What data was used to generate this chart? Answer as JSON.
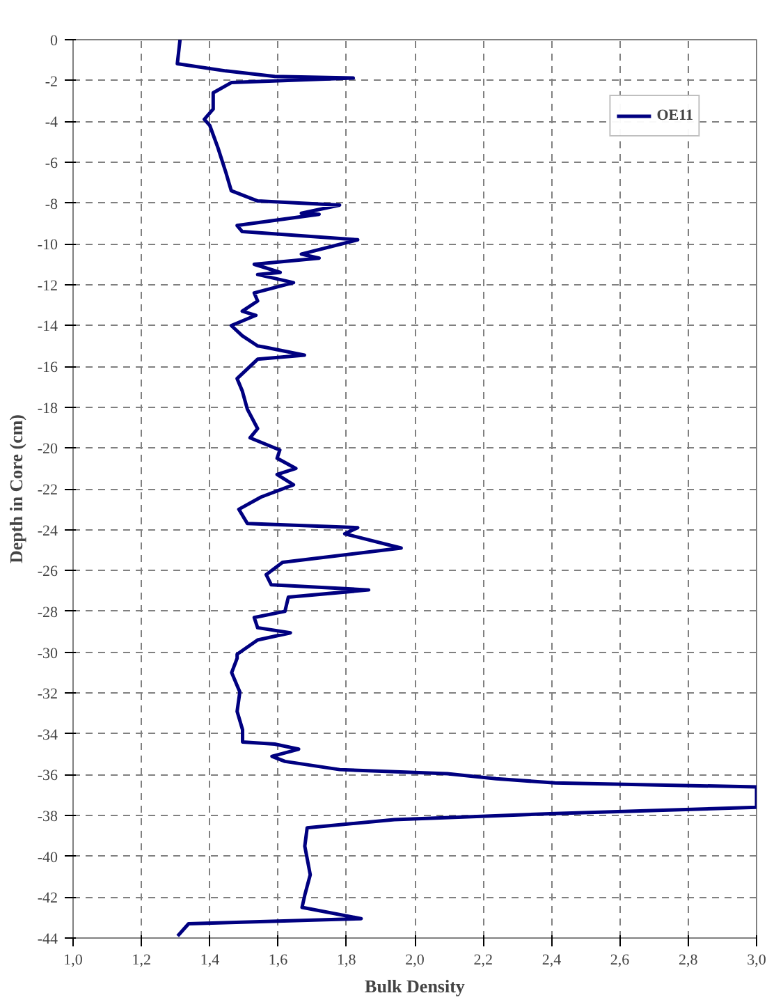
{
  "chart_data": {
    "type": "line",
    "xlabel": "Bulk Density",
    "ylabel": "Depth in Core (cm)",
    "series": [
      {
        "name": "OE11",
        "color": "#000080",
        "x": [
          1.313,
          1.305,
          1.447,
          1.59,
          1.82,
          1.463,
          1.41,
          1.41,
          1.384,
          1.4,
          1.424,
          1.447,
          1.463,
          1.54,
          1.78,
          1.668,
          1.72,
          1.48,
          1.495,
          1.833,
          1.668,
          1.72,
          1.53,
          1.606,
          1.54,
          1.645,
          1.53,
          1.54,
          1.495,
          1.535,
          1.463,
          1.495,
          1.54,
          1.558,
          1.677,
          1.54,
          1.48,
          1.495,
          1.51,
          1.54,
          1.518,
          1.605,
          1.597,
          1.652,
          1.597,
          1.645,
          1.55,
          1.485,
          1.51,
          1.833,
          1.795,
          1.96,
          1.613,
          1.565,
          1.58,
          1.865,
          1.63,
          1.62,
          1.53,
          1.54,
          1.636,
          1.54,
          1.48,
          1.48,
          1.464,
          1.488,
          1.48,
          1.496,
          1.496,
          1.59,
          1.66,
          1.582,
          1.62,
          1.78,
          2.095,
          2.238,
          2.41,
          3.0,
          3.0,
          2.41,
          1.94,
          1.685,
          1.678,
          1.694,
          1.678,
          1.67,
          1.843,
          1.338,
          1.306
        ],
        "values": [
          0,
          -1.18,
          -1.53,
          -1.8,
          -1.88,
          -2.1,
          -2.6,
          -3.4,
          -3.9,
          -4.2,
          -5.3,
          -6.5,
          -7.4,
          -7.9,
          -8.1,
          -8.5,
          -8.55,
          -9.1,
          -9.4,
          -9.8,
          -10.5,
          -10.7,
          -11.0,
          -11.4,
          -11.5,
          -11.9,
          -12.4,
          -12.8,
          -13.3,
          -13.5,
          -14.0,
          -14.5,
          -15.0,
          -15.05,
          -15.45,
          -15.65,
          -16.6,
          -17.2,
          -18.1,
          -19.05,
          -19.5,
          -20.1,
          -20.5,
          -21.0,
          -21.3,
          -21.8,
          -22.4,
          -23.0,
          -23.7,
          -23.9,
          -24.2,
          -24.9,
          -25.6,
          -26.2,
          -26.7,
          -26.95,
          -27.3,
          -28.0,
          -28.3,
          -28.8,
          -29.05,
          -29.4,
          -30.1,
          -30.3,
          -31.0,
          -31.95,
          -32.9,
          -33.8,
          -34.4,
          -34.5,
          -34.75,
          -35.1,
          -35.35,
          -35.75,
          -35.95,
          -36.2,
          -36.4,
          -36.6,
          -37.6,
          -37.9,
          -38.2,
          -38.6,
          -39.5,
          -40.9,
          -41.9,
          -42.5,
          -43.05,
          -43.3,
          -43.9
        ]
      }
    ],
    "xlim": [
      1.0,
      3.0
    ],
    "xticks": [
      {
        "value": 1.0,
        "label": "1,0"
      },
      {
        "value": 1.2,
        "label": "1,2"
      },
      {
        "value": 1.4,
        "label": "1,4"
      },
      {
        "value": 1.6,
        "label": "1,6"
      },
      {
        "value": 1.8,
        "label": "1,8"
      },
      {
        "value": 2.0,
        "label": "2,0"
      },
      {
        "value": 2.2,
        "label": "2,2"
      },
      {
        "value": 2.4,
        "label": "2,4"
      },
      {
        "value": 2.6,
        "label": "2,6"
      },
      {
        "value": 2.8,
        "label": "2,8"
      },
      {
        "value": 3.0,
        "label": "3,0"
      }
    ],
    "ylim": [
      -44,
      0
    ],
    "yticks": [
      0,
      -2,
      -4,
      -6,
      -8,
      -10,
      -12,
      -14,
      -16,
      -18,
      -20,
      -22,
      -24,
      -26,
      -28,
      -30,
      -32,
      -34,
      -36,
      -38,
      -40,
      -42,
      -44
    ],
    "grid": true,
    "legend": "top right",
    "line_style": "solid"
  }
}
